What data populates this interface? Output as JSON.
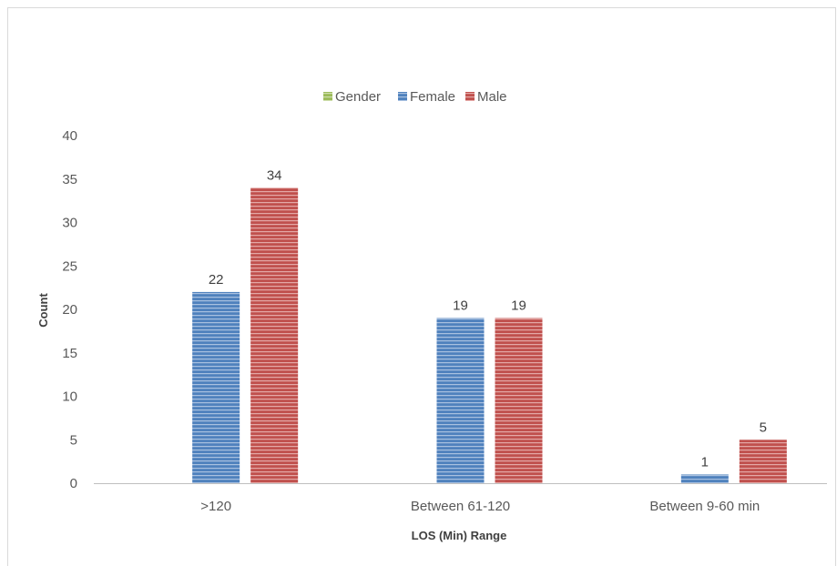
{
  "chart_data": {
    "type": "bar",
    "title": "",
    "xlabel": "LOS (Min) Range",
    "ylabel": "Count",
    "ylim": [
      0,
      40
    ],
    "yticks": [
      0,
      5,
      10,
      15,
      20,
      25,
      30,
      35,
      40
    ],
    "grid": false,
    "legend_position": "top",
    "categories": [
      ">120",
      "Between 61-120",
      "Between 9-60 min"
    ],
    "legend": [
      {
        "name": "Gender",
        "color": "#9bbb59"
      },
      {
        "name": "Female",
        "color": "#4f81bd"
      },
      {
        "name": "Male",
        "color": "#c0504d"
      }
    ],
    "series": [
      {
        "name": "Gender",
        "color": "#9bbb59",
        "values": [
          null,
          null,
          null
        ]
      },
      {
        "name": "Female",
        "color": "#4f81bd",
        "values": [
          22,
          19,
          1
        ]
      },
      {
        "name": "Male",
        "color": "#c0504d",
        "values": [
          34,
          19,
          5
        ]
      }
    ]
  }
}
